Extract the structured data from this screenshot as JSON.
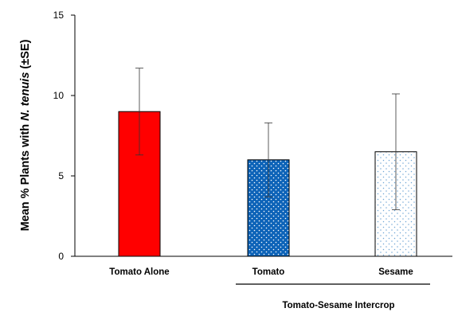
{
  "chart_data": {
    "type": "bar",
    "categories": [
      "Tomato Alone",
      "Tomato",
      "Sesame"
    ],
    "values": [
      9.0,
      6.0,
      6.5
    ],
    "errors": [
      2.7,
      2.3,
      3.6
    ],
    "ylim": [
      0,
      15
    ],
    "yticks": [
      0,
      5,
      10,
      15
    ],
    "ylabel_prefix": "Mean % Plants with ",
    "ylabel_species": "N. tenuis",
    "ylabel_suffix": " (±SE)",
    "group_label": "Tomato-Sesame Intercrop",
    "grid": false,
    "legend": "none",
    "bar_styles": [
      {
        "fill": "#ff0000",
        "pattern": "solid"
      },
      {
        "fill": "#0d63b8",
        "pattern": "white-dots"
      },
      {
        "fill": "#ffffff",
        "pattern": "blue-dots"
      }
    ]
  }
}
